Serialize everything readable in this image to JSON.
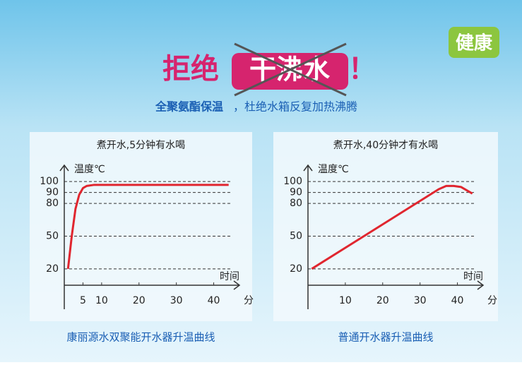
{
  "header": {
    "lead": "拒绝",
    "crossed": "干沸水",
    "mark": "！",
    "subtitle_bold": "全聚氨酯保温",
    "subtitle_rest": "，杜绝水箱反复加热沸腾",
    "badge": "健康"
  },
  "chart_data": [
    {
      "type": "line",
      "title": "煮开水,5分钟有水喝",
      "y_label": "温度℃",
      "x_label": "时间",
      "x_unit": "分",
      "caption": "康丽源水双聚能开水器升温曲线",
      "x": [
        1,
        2,
        3,
        4,
        5,
        6,
        8,
        44
      ],
      "series": [
        {
          "color": "#e0262f",
          "values": [
            20,
            50,
            75,
            88,
            94,
            96,
            97,
            97
          ]
        }
      ],
      "xlim": [
        0,
        45
      ],
      "xticks": [
        5,
        10,
        20,
        30,
        40
      ],
      "ylim": [
        5,
        115
      ],
      "yticks": [
        20,
        50,
        80,
        90,
        100
      ],
      "grid": true
    },
    {
      "type": "line",
      "title": "煮开水,40分钟才有水喝",
      "y_label": "温度℃",
      "x_label": "时间",
      "x_unit": "分",
      "caption": "普通开水器升温曲线",
      "x": [
        1,
        35,
        37,
        39,
        41,
        44
      ],
      "series": [
        {
          "color": "#e0262f",
          "values": [
            20,
            93,
            96,
            96,
            95,
            89
          ]
        }
      ],
      "xlim": [
        0,
        45
      ],
      "xticks": [
        10,
        20,
        30,
        40
      ],
      "ylim": [
        5,
        115
      ],
      "yticks": [
        20,
        50,
        80,
        90,
        100
      ],
      "grid": true
    }
  ]
}
